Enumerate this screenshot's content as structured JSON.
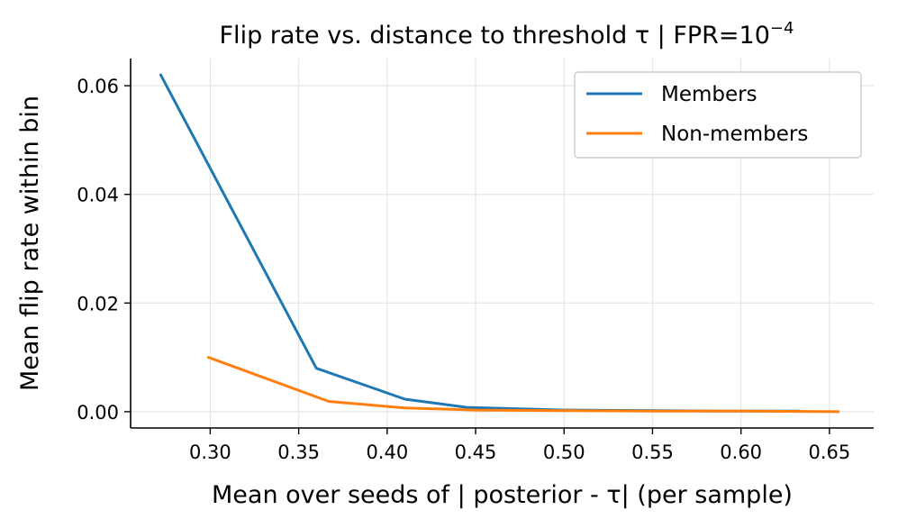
{
  "chart_data": {
    "type": "line",
    "title": "Flip rate vs. distance to threshold τ  |  FPR=10",
    "title_exponent": "−4",
    "xlabel": "Mean over seeds of | posterior - τ| (per sample)",
    "ylabel": "Mean flip rate within bin",
    "xlim": [
      0.255,
      0.675
    ],
    "ylim": [
      -0.003,
      0.065
    ],
    "xticks": [
      0.3,
      0.35,
      0.4,
      0.45,
      0.5,
      0.55,
      0.6,
      0.65
    ],
    "xtick_labels": [
      "0.30",
      "0.35",
      "0.40",
      "0.45",
      "0.50",
      "0.55",
      "0.60",
      "0.65"
    ],
    "yticks": [
      0.0,
      0.02,
      0.04,
      0.06
    ],
    "ytick_labels": [
      "0.00",
      "0.02",
      "0.04",
      "0.06"
    ],
    "grid": true,
    "legend_position": "top-right",
    "series": [
      {
        "name": "Members",
        "color": "#1f77b4",
        "x": [
          0.272,
          0.36,
          0.41,
          0.445,
          0.5,
          0.55,
          0.59,
          0.633
        ],
        "y": [
          0.062,
          0.008,
          0.0023,
          0.0008,
          0.0003,
          0.0002,
          0.0001,
          0.0001
        ]
      },
      {
        "name": "Non-members",
        "color": "#ff7f0e",
        "x": [
          0.299,
          0.367,
          0.41,
          0.45,
          0.5,
          0.55,
          0.6,
          0.655
        ],
        "y": [
          0.01,
          0.0019,
          0.0007,
          0.0003,
          0.0002,
          0.0001,
          0.0001,
          0.0
        ]
      }
    ]
  }
}
